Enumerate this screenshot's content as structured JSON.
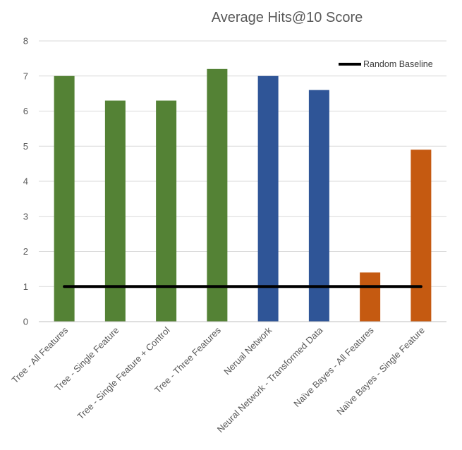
{
  "chart_data": {
    "type": "bar",
    "title": "Average Hits@10 Score",
    "xlabel": "",
    "ylabel": "",
    "ylim": [
      0,
      8
    ],
    "yticks": [
      0,
      1,
      2,
      3,
      4,
      5,
      6,
      7,
      8
    ],
    "grid": true,
    "categories": [
      "Tree - All Features",
      "Tree - Single Feature",
      "Tree - Single Feature + Control",
      "Tree - Three Features",
      "Nerual Network",
      "Neural Network - Transformed Data",
      "Naïve Bayes - All Features",
      "Naïve Bayes - Single Feature"
    ],
    "values": [
      7.0,
      6.3,
      6.3,
      7.2,
      7.0,
      6.6,
      1.4,
      4.9
    ],
    "bar_colors": [
      "#548235",
      "#548235",
      "#548235",
      "#548235",
      "#2f5597",
      "#2f5597",
      "#c55a11",
      "#c55a11"
    ],
    "baseline": {
      "name": "Random Baseline",
      "value": 1,
      "color": "#000000"
    },
    "legend_position": "top-right"
  }
}
